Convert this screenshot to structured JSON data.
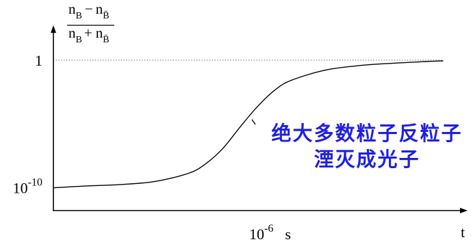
{
  "chart_data": {
    "type": "line",
    "xscale": "log",
    "yscale": "log",
    "xlim": [
      1e-12,
      1
    ],
    "ylim": [
      1e-12,
      1000
    ],
    "grid": false,
    "legend": "none",
    "xlabel": "t",
    "ylabel": {
      "numerator": {
        "a": "n",
        "a_sub": "B",
        "op": "−",
        "b": "n",
        "b_sub": "B̄"
      },
      "denominator": {
        "a": "n",
        "a_sub": "B",
        "op": "+",
        "b": "n",
        "b_sub": "B̄"
      }
    },
    "xticks": [
      {
        "value": 1e-06,
        "label": "10",
        "sup": "-6",
        "unit": "s"
      }
    ],
    "yticks": [
      {
        "value": 1,
        "label": "1"
      },
      {
        "value": 1e-10,
        "label": "10",
        "sup": "-10"
      }
    ],
    "reference_lines": [
      {
        "y": 1,
        "style": "dotted"
      }
    ],
    "series": [
      {
        "x": [
          1e-12,
          1e-11,
          1e-10,
          1e-09,
          1e-08,
          3.2e-08,
          1e-07,
          3.2e-07,
          1e-06,
          3.2e-06,
          1e-05,
          0.0001,
          0.001,
          0.01,
          0.1,
          0.32
        ],
        "y": [
          1e-10,
          1.4e-10,
          1.8e-10,
          3.1e-10,
          1.4e-09,
          8e-09,
          1.2e-07,
          5.6e-06,
          0.0002,
          0.0039,
          0.025,
          0.16,
          0.37,
          0.57,
          0.78,
          0.88
        ]
      }
    ],
    "annotations": [
      {
        "lines": [
          "绝大多数粒子反粒子",
          "湮灭成光子"
        ],
        "color": "#2020e0"
      }
    ]
  }
}
